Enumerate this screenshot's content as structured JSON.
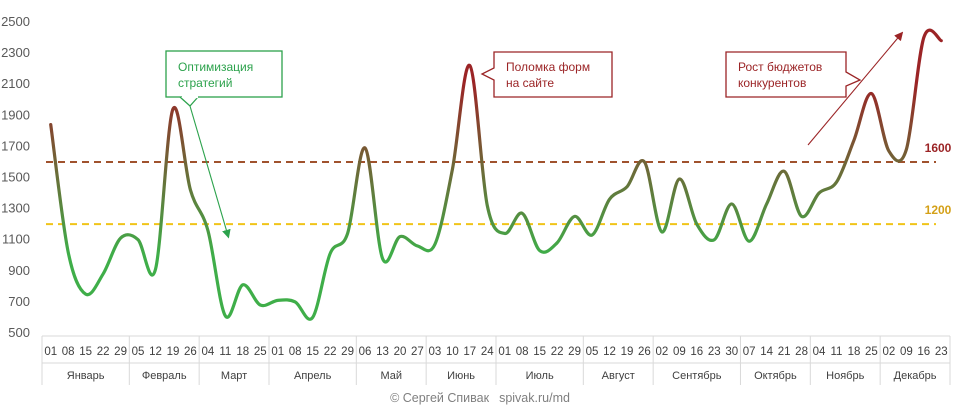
{
  "chart_data": {
    "type": "line",
    "title": "",
    "xlabel": "",
    "ylabel": "",
    "ylim": [
      500,
      2500
    ],
    "yticks": [
      500,
      700,
      900,
      1100,
      1300,
      1500,
      1700,
      1900,
      2100,
      2300,
      2500
    ],
    "grid": false,
    "x": [
      "01",
      "08",
      "15",
      "22",
      "29",
      "05",
      "12",
      "19",
      "26",
      "04",
      "11",
      "18",
      "25",
      "01",
      "08",
      "15",
      "22",
      "29",
      "06",
      "13",
      "20",
      "27",
      "03",
      "10",
      "17",
      "24",
      "01",
      "08",
      "15",
      "22",
      "29",
      "05",
      "12",
      "19",
      "26",
      "02",
      "09",
      "16",
      "23",
      "30",
      "07",
      "14",
      "21",
      "28",
      "04",
      "11",
      "18",
      "25",
      "02",
      "09",
      "16",
      "23"
    ],
    "months": [
      {
        "label": "Январь",
        "count": 5
      },
      {
        "label": "Февраль",
        "count": 4
      },
      {
        "label": "Март",
        "count": 4
      },
      {
        "label": "Апрель",
        "count": 5
      },
      {
        "label": "Май",
        "count": 4
      },
      {
        "label": "Июнь",
        "count": 4
      },
      {
        "label": "Июль",
        "count": 5
      },
      {
        "label": "Август",
        "count": 4
      },
      {
        "label": "Сентябрь",
        "count": 5
      },
      {
        "label": "Октябрь",
        "count": 4
      },
      {
        "label": "Ноябрь",
        "count": 4
      },
      {
        "label": "Декабрь",
        "count": 4
      }
    ],
    "series": [
      {
        "values": [
          1840,
          1020,
          750,
          880,
          1110,
          1100,
          910,
          1940,
          1420,
          1160,
          610,
          810,
          680,
          710,
          700,
          600,
          1010,
          1140,
          1690,
          980,
          1120,
          1060,
          1070,
          1550,
          2220,
          1320,
          1140,
          1270,
          1030,
          1080,
          1250,
          1130,
          1360,
          1440,
          1600,
          1150,
          1490,
          1200,
          1100,
          1330,
          1090,
          1330,
          1540,
          1250,
          1400,
          1470,
          1740,
          2040,
          1670,
          1680,
          2400,
          2380
        ],
        "gradient": {
          "low_color": "#3fae49",
          "high_color": "#9b2426"
        }
      }
    ],
    "reference_lines": [
      {
        "value": 1600,
        "label": "1600",
        "color": "#a0522d",
        "label_color": "#9b2426"
      },
      {
        "value": 1200,
        "label": "1200",
        "color": "#f0c419",
        "label_color": "#d4a017"
      }
    ],
    "annotations": [
      {
        "text_lines": [
          "Оптимизация",
          "стратегий"
        ],
        "color": "#2ca24c",
        "point_x_index": 10
      },
      {
        "text_lines": [
          "Поломка форм",
          "на сайте"
        ],
        "color": "#9b2426",
        "point_x_index": 24
      },
      {
        "text_lines": [
          "Рост бюджетов",
          "конкурентов"
        ],
        "color": "#9b2426",
        "point_x_index": 51
      }
    ]
  },
  "footer": {
    "copyright": "© Сергей Спивак",
    "site": "spivak.ru/md"
  }
}
